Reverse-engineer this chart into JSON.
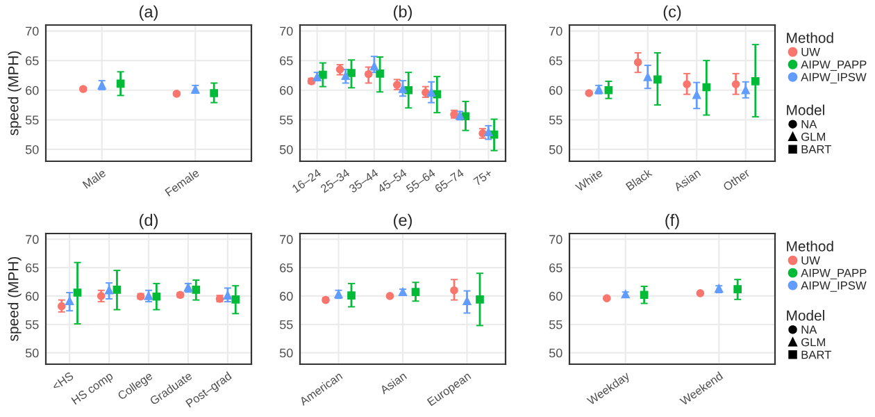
{
  "chart_data": [
    {
      "type": "scatter",
      "title": "(a)",
      "ylabel": "speed (MPH)",
      "categories": [
        "Male",
        "Female"
      ],
      "ylim": [
        48,
        71
      ],
      "yticks": [
        50,
        55,
        60,
        65,
        70
      ],
      "grid": true,
      "series": [
        {
          "color": "#f8766d",
          "marker": "circle",
          "values": [
            60.2,
            59.4
          ],
          "errors": [
            [
              59.9,
              60.5
            ],
            [
              59.2,
              59.7
            ]
          ]
        },
        {
          "color": "#00ba38",
          "marker": "square",
          "values": [
            61.1,
            59.5
          ],
          "errors": [
            [
              59.1,
              63.1
            ],
            [
              57.9,
              61.2
            ]
          ]
        },
        {
          "color": "#619cff",
          "marker": "triangle",
          "values": [
            60.8,
            60.1
          ],
          "errors": [
            [
              60.1,
              61.6
            ],
            [
              59.5,
              60.8
            ]
          ]
        }
      ]
    },
    {
      "type": "scatter",
      "title": "(b)",
      "categories": [
        "16–24",
        "25–34",
        "35–44",
        "45–54",
        "55–64",
        "65–74",
        "75+"
      ],
      "ylim": [
        48,
        71
      ],
      "yticks": [
        50,
        55,
        60,
        65,
        70
      ],
      "grid": true,
      "series": [
        {
          "color": "#f8766d",
          "marker": "circle",
          "values": [
            61.5,
            63.5,
            62.7,
            60.9,
            59.6,
            55.9,
            52.7
          ],
          "errors": [
            [
              61.1,
              62.0
            ],
            [
              62.6,
              64.3
            ],
            [
              61.2,
              63.9
            ],
            [
              60.1,
              61.8
            ],
            [
              58.8,
              60.6
            ],
            [
              55.3,
              56.6
            ],
            [
              51.9,
              53.5
            ]
          ]
        },
        {
          "color": "#00ba38",
          "marker": "square",
          "values": [
            62.6,
            62.9,
            62.8,
            60.0,
            59.3,
            55.6,
            52.5
          ],
          "errors": [
            [
              60.6,
              64.6
            ],
            [
              60.4,
              65.1
            ],
            [
              59.7,
              65.6
            ],
            [
              57.0,
              63.0
            ],
            [
              56.2,
              62.3
            ],
            [
              53.2,
              58.1
            ],
            [
              49.8,
              55.1
            ]
          ]
        },
        {
          "color": "#619cff",
          "marker": "triangle",
          "values": [
            62.2,
            62.4,
            64.0,
            60.2,
            59.6,
            55.7,
            52.9
          ],
          "errors": [
            [
              61.6,
              63.0
            ],
            [
              61.2,
              63.5
            ],
            [
              63.0,
              65.7
            ],
            [
              59.0,
              61.6
            ],
            [
              57.9,
              61.4
            ],
            [
              55.0,
              56.4
            ],
            [
              51.7,
              54.0
            ]
          ]
        }
      ]
    },
    {
      "type": "scatter",
      "title": "(c)",
      "categories": [
        "White",
        "Black",
        "Asian",
        "Other"
      ],
      "ylim": [
        48,
        71
      ],
      "yticks": [
        50,
        55,
        60,
        65,
        70
      ],
      "grid": true,
      "legend": "right",
      "legend_title": "Method",
      "annotations": [
        "Model",
        "NA",
        "GLM",
        "BART"
      ],
      "series": [
        {
          "name": "UW",
          "color": "#f8766d",
          "marker": "circle",
          "values": [
            59.5,
            64.7,
            61.0,
            61.0
          ],
          "errors": [
            [
              59.3,
              59.8
            ],
            [
              63.0,
              66.3
            ],
            [
              59.3,
              62.8
            ],
            [
              59.3,
              62.8
            ]
          ]
        },
        {
          "name": "AIPW_PAPP",
          "color": "#00ba38",
          "marker": "square",
          "values": [
            60.0,
            61.8,
            60.5,
            61.5
          ],
          "errors": [
            [
              58.6,
              61.5
            ],
            [
              57.5,
              66.3
            ],
            [
              55.8,
              65.0
            ],
            [
              55.5,
              67.7
            ]
          ]
        },
        {
          "name": "AIPW_IPSW",
          "color": "#619cff",
          "marker": "triangle",
          "values": [
            60.1,
            62.2,
            59.2,
            60.0
          ],
          "errors": [
            [
              59.4,
              60.8
            ],
            [
              60.3,
              64.2
            ],
            [
              56.9,
              61.3
            ],
            [
              58.7,
              61.4
            ]
          ]
        }
      ]
    },
    {
      "type": "scatter",
      "title": "(d)",
      "ylabel": "speed (MPH)",
      "categories": [
        "<HS",
        "HS comp",
        "College",
        "Graduate",
        "Post–grad"
      ],
      "ylim": [
        48,
        71
      ],
      "yticks": [
        50,
        55,
        60,
        65,
        70
      ],
      "grid": true,
      "series": [
        {
          "color": "#f8766d",
          "marker": "circle",
          "values": [
            58.2,
            60.0,
            59.9,
            60.2,
            59.5
          ],
          "errors": [
            [
              57.2,
              59.3
            ],
            [
              59.0,
              61.0
            ],
            [
              59.5,
              60.4
            ],
            [
              59.8,
              60.6
            ],
            [
              59.0,
              60.1
            ]
          ]
        },
        {
          "color": "#00ba38",
          "marker": "square",
          "values": [
            60.6,
            61.1,
            59.9,
            61.1,
            59.4
          ],
          "errors": [
            [
              55.1,
              65.9
            ],
            [
              57.6,
              64.5
            ],
            [
              57.6,
              62.2
            ],
            [
              59.3,
              62.8
            ],
            [
              56.9,
              61.8
            ]
          ]
        },
        {
          "color": "#619cff",
          "marker": "triangle",
          "values": [
            59.1,
            61.0,
            60.0,
            61.5,
            60.1
          ],
          "errors": [
            [
              57.4,
              60.6
            ],
            [
              59.5,
              62.3
            ],
            [
              59.0,
              61.0
            ],
            [
              60.7,
              62.2
            ],
            [
              59.0,
              61.4
            ]
          ]
        }
      ]
    },
    {
      "type": "scatter",
      "title": "(e)",
      "categories": [
        "American",
        "Asian",
        "European"
      ],
      "ylim": [
        48,
        71
      ],
      "yticks": [
        50,
        55,
        60,
        65,
        70
      ],
      "grid": true,
      "series": [
        {
          "color": "#f8766d",
          "marker": "circle",
          "values": [
            59.3,
            60.0,
            61.0
          ],
          "errors": [
            [
              59.0,
              59.7
            ],
            [
              59.8,
              60.2
            ],
            [
              59.3,
              62.9
            ]
          ]
        },
        {
          "color": "#00ba38",
          "marker": "square",
          "values": [
            60.1,
            60.7,
            59.4
          ],
          "errors": [
            [
              58.1,
              62.2
            ],
            [
              59.1,
              62.4
            ],
            [
              54.8,
              64.0
            ]
          ]
        },
        {
          "color": "#619cff",
          "marker": "triangle",
          "values": [
            60.3,
            60.7,
            59.1
          ],
          "errors": [
            [
              59.6,
              61.0
            ],
            [
              60.3,
              61.2
            ],
            [
              57.0,
              60.9
            ]
          ]
        }
      ]
    },
    {
      "type": "scatter",
      "title": "(f)",
      "categories": [
        "Weekday",
        "Weekend"
      ],
      "ylim": [
        48,
        71
      ],
      "yticks": [
        50,
        55,
        60,
        65,
        70
      ],
      "grid": true,
      "legend": "right",
      "legend_title": "Method",
      "annotations": [
        "Model",
        "NA",
        "GLM",
        "BART"
      ],
      "series": [
        {
          "name": "UW",
          "color": "#f8766d",
          "marker": "circle",
          "values": [
            59.6,
            60.5
          ],
          "errors": [
            [
              59.4,
              59.8
            ],
            [
              60.3,
              60.7
            ]
          ]
        },
        {
          "name": "AIPW_PAPP",
          "color": "#00ba38",
          "marker": "square",
          "values": [
            60.2,
            61.2
          ],
          "errors": [
            [
              58.7,
              61.7
            ],
            [
              59.4,
              62.9
            ]
          ]
        },
        {
          "name": "AIPW_IPSW",
          "color": "#619cff",
          "marker": "triangle",
          "values": [
            60.3,
            61.3
          ],
          "errors": [
            [
              59.8,
              60.7
            ],
            [
              60.6,
              61.8
            ]
          ]
        }
      ]
    }
  ]
}
